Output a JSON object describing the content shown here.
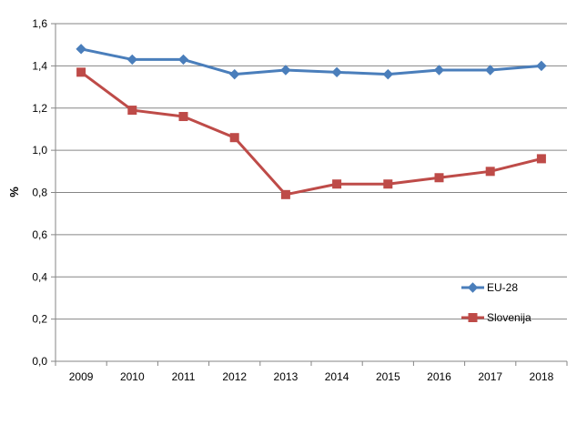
{
  "chart_data": {
    "type": "line",
    "categories": [
      "2009",
      "2010",
      "2011",
      "2012",
      "2013",
      "2014",
      "2015",
      "2016",
      "2017",
      "2018"
    ],
    "series": [
      {
        "name": "EU-28",
        "color": "#4a7ebb",
        "marker": "diamond",
        "values": [
          1.48,
          1.43,
          1.43,
          1.36,
          1.38,
          1.37,
          1.36,
          1.38,
          1.38,
          1.4
        ]
      },
      {
        "name": "Slovenija",
        "color": "#be4b48",
        "marker": "square",
        "values": [
          1.37,
          1.19,
          1.16,
          1.06,
          0.79,
          0.84,
          0.84,
          0.87,
          0.9,
          0.96
        ]
      }
    ],
    "ylabel": "%",
    "ylim": [
      0,
      1.6
    ],
    "yticks": [
      "0,0",
      "0,2",
      "0,4",
      "0,6",
      "0,8",
      "1,0",
      "1,2",
      "1,4",
      "1,6"
    ],
    "grid": true,
    "legend": "bottom-right"
  }
}
